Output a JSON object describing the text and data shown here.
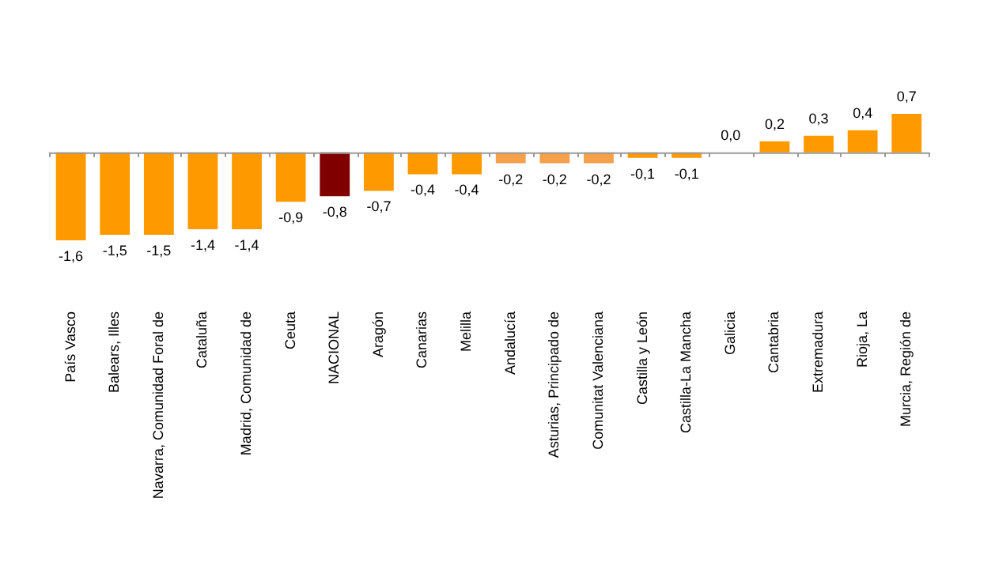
{
  "chart_data": {
    "type": "bar",
    "categories": [
      "País Vasco",
      "Balears, Illes",
      "Navarra, Comunidad Foral de",
      "Cataluña",
      "Madrid, Comunidad de",
      "Ceuta",
      "NACIONAL",
      "Aragón",
      "Canarias",
      "Melilla",
      "Andalucía",
      "Asturias, Principado de",
      "Comunitat Valenciana",
      "Castilla y León",
      "Castilla-La Mancha",
      "Galicia",
      "Cantabria",
      "Extremadura",
      "Rioja, La",
      "Murcia, Región de"
    ],
    "values": [
      -1.6,
      -1.5,
      -1.5,
      -1.4,
      -1.4,
      -0.9,
      -0.8,
      -0.7,
      -0.4,
      -0.4,
      -0.2,
      -0.2,
      -0.2,
      -0.1,
      -0.1,
      0.0,
      0.2,
      0.3,
      0.4,
      0.7
    ],
    "colors": [
      "#ff9900",
      "#ff9900",
      "#ff9900",
      "#ff9900",
      "#ff9900",
      "#ff9900",
      "#800000",
      "#ff9900",
      "#ff9900",
      "#ff9900",
      "#f5a04a",
      "#f5a04a",
      "#f5a04a",
      "#ff9900",
      "#ff9900",
      "#ff9900",
      "#ff9900",
      "#ff9900",
      "#ff9900",
      "#ff9900"
    ],
    "value_labels": [
      "-1,6",
      "-1,5",
      "-1,5",
      "-1,4",
      "-1,4",
      "-0,9",
      "-0,8",
      "-0,7",
      "-0,4",
      "-0,4",
      "-0,2",
      "-0,2",
      "-0,2",
      "-0,1",
      "-0,1",
      "0,0",
      "0,2",
      "0,3",
      "0,4",
      "0,7"
    ],
    "grid": false,
    "legend": false
  }
}
